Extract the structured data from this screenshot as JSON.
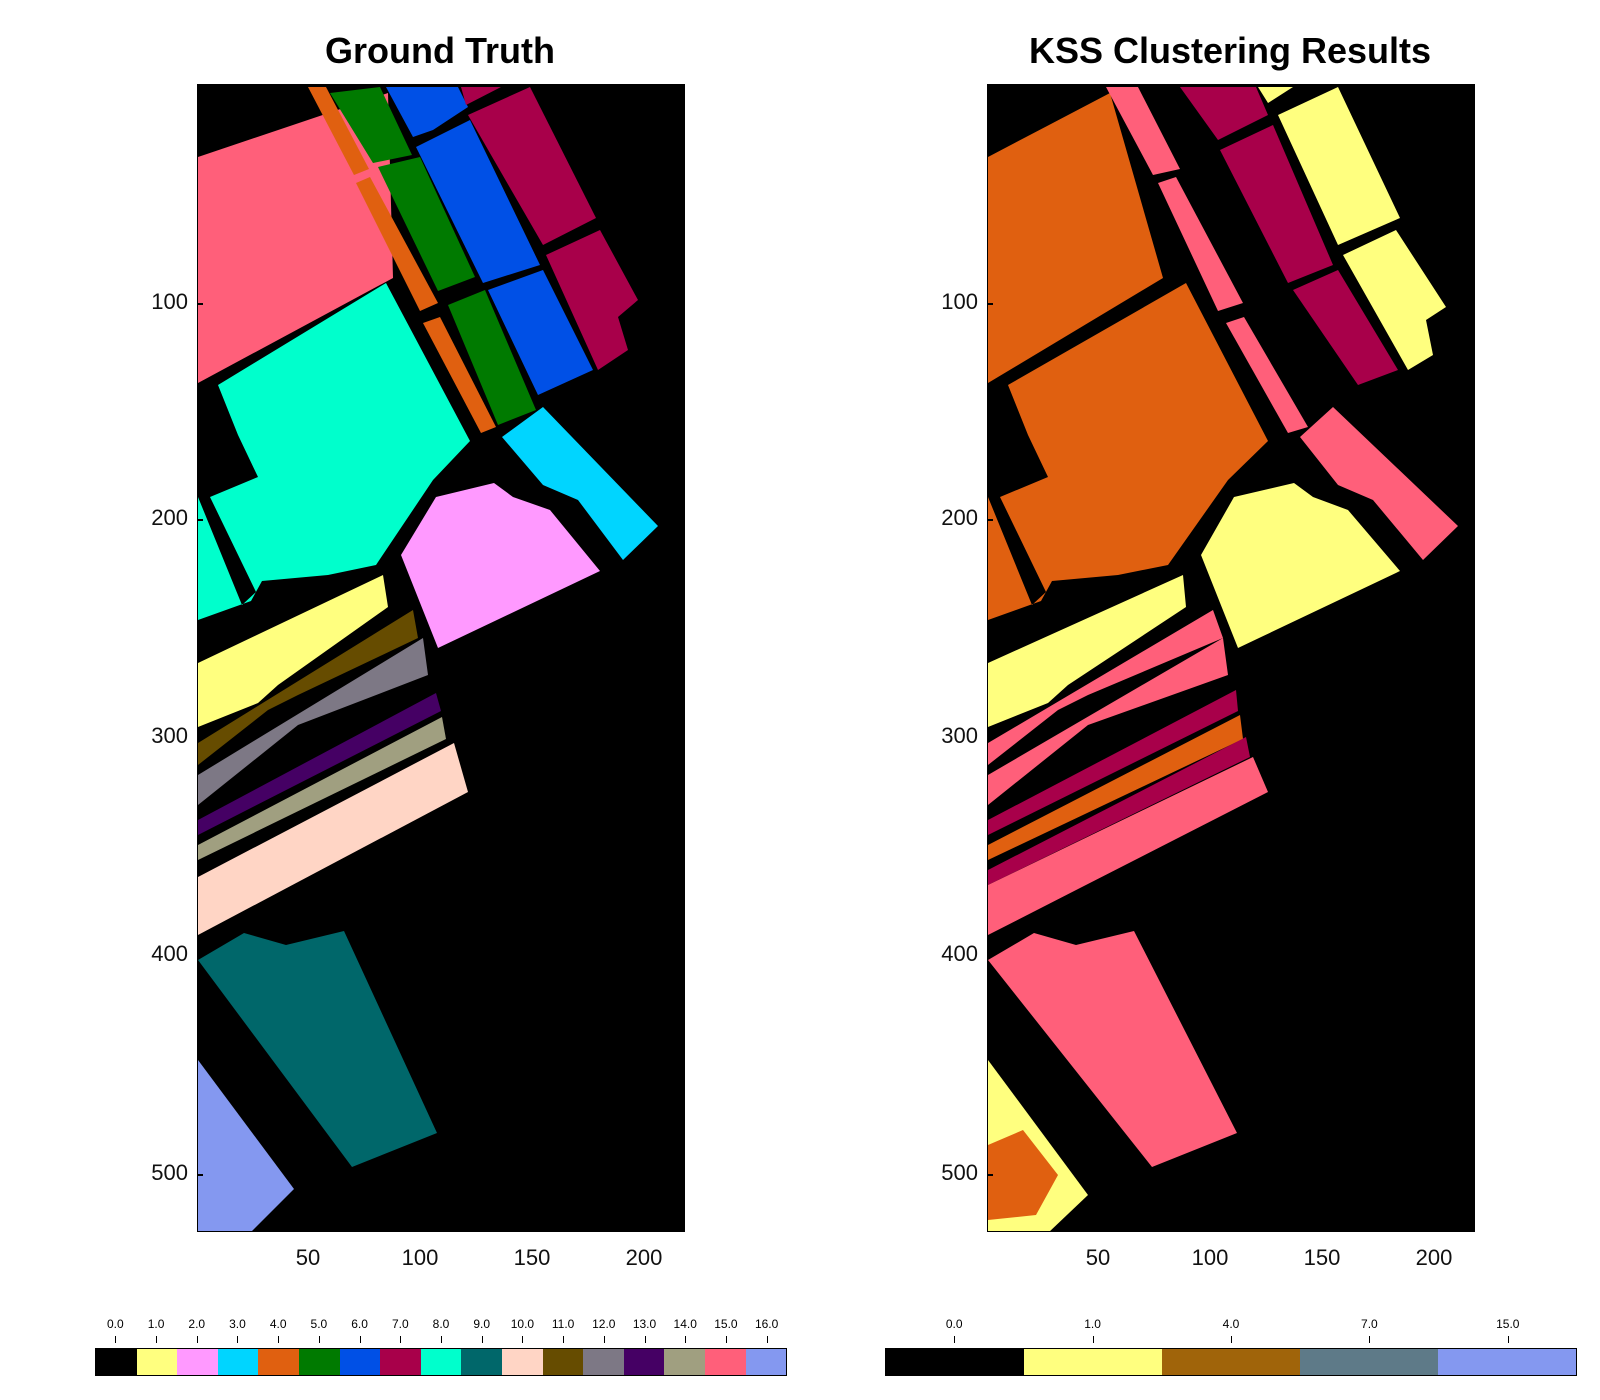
{
  "chart_data": [
    {
      "type": "heatmap",
      "title": "Ground Truth",
      "xlim": [
        1,
        217
      ],
      "ylim": [
        1,
        512
      ],
      "x_ticks": [
        "50",
        "100",
        "150",
        "200"
      ],
      "y_ticks": [
        "100",
        "200",
        "300",
        "400",
        "500"
      ],
      "grid": false,
      "colorbar": {
        "labels": [
          "0.0",
          "1.0",
          "2.0",
          "3.0",
          "4.0",
          "5.0",
          "6.0",
          "7.0",
          "8.0",
          "9.0",
          "10.0",
          "11.0",
          "12.0",
          "13.0",
          "14.0",
          "15.0",
          "16.0"
        ],
        "colors": [
          "#000000",
          "#ffff7f",
          "#ff99ff",
          "#00d5ff",
          "#e06010",
          "#007a00",
          "#0050e6",
          "#a8004a",
          "#00ffcc",
          "#00676a",
          "#ffd5c5",
          "#664c00",
          "#7d7885",
          "#450064",
          "#a09f80",
          "#ff5f7a",
          "#8498f0"
        ]
      }
    },
    {
      "type": "heatmap",
      "title": "KSS Clustering Results",
      "xlim": [
        1,
        217
      ],
      "ylim": [
        1,
        512
      ],
      "x_ticks": [
        "50",
        "100",
        "150",
        "200"
      ],
      "y_ticks": [
        "100",
        "200",
        "300",
        "400",
        "500"
      ],
      "grid": false,
      "colorbar": {
        "labels": [
          "0.0",
          "1.0",
          "4.0",
          "7.0",
          "15.0"
        ],
        "colors": [
          "#000000",
          "#ffff7f",
          "#a0640a",
          "#5e7a88",
          "#8498f0"
        ]
      }
    }
  ]
}
